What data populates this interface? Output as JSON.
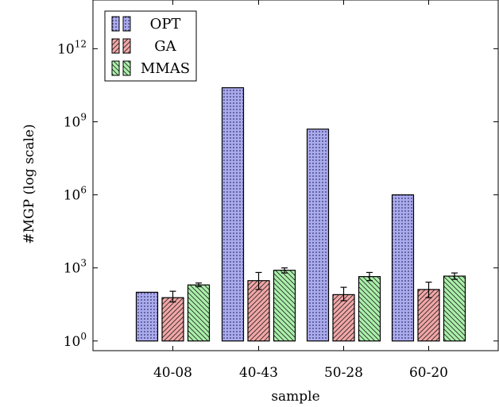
{
  "chart_data": {
    "type": "bar",
    "xlabel": "sample",
    "ylabel": "#MGP (log scale)",
    "y_scale": "log",
    "ylim": [
      0.4,
      100000000000000.0
    ],
    "y_ticks": [
      {
        "value": 1,
        "base": "10",
        "exp": "0"
      },
      {
        "value": 1000,
        "base": "10",
        "exp": "3"
      },
      {
        "value": 1000000,
        "base": "10",
        "exp": "6"
      },
      {
        "value": 1000000000,
        "base": "10",
        "exp": "9"
      },
      {
        "value": 1000000000000,
        "base": "10",
        "exp": "12"
      }
    ],
    "categories": [
      "40-08",
      "40-43",
      "50-28",
      "60-20"
    ],
    "legend_position": "top-left",
    "series": [
      {
        "name": "OPT",
        "color": "#aaaaee",
        "pattern": "dots",
        "values": [
          100,
          25000000000.0,
          500000000.0,
          1000000.0
        ]
      },
      {
        "name": "GA",
        "color": "#f2a6a6",
        "pattern": "hatch-ne",
        "values": [
          60,
          300,
          80,
          130
        ],
        "errors": [
          [
            40,
            110
          ],
          [
            130,
            650
          ],
          [
            45,
            160
          ],
          [
            60,
            260
          ]
        ]
      },
      {
        "name": "MMAS",
        "color": "#aaf0aa",
        "pattern": "hatch-nw",
        "values": [
          200,
          800,
          440,
          460
        ],
        "errors": [
          [
            170,
            240
          ],
          [
            620,
            1000
          ],
          [
            300,
            650
          ],
          [
            340,
            620
          ]
        ]
      }
    ]
  }
}
